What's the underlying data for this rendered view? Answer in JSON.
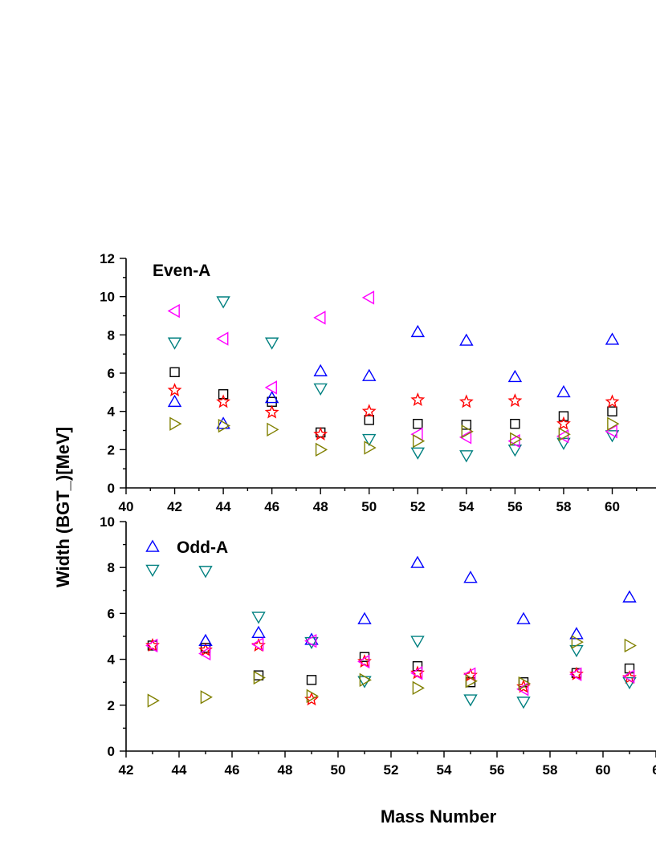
{
  "chart_data": {
    "type": "scatter",
    "ylabel": "Width (BGT_)[MeV]",
    "xlabel": "Mass Number",
    "series_styles": [
      {
        "id": "square",
        "marker": "square",
        "color": "#000000"
      },
      {
        "id": "star",
        "marker": "star",
        "color": "#ff0000"
      },
      {
        "id": "tri_up",
        "marker": "triangle-up",
        "color": "#0000ff"
      },
      {
        "id": "tri_down",
        "marker": "triangle-down",
        "color": "#008080"
      },
      {
        "id": "tri_left",
        "marker": "triangle-left",
        "color": "#ff00ff"
      },
      {
        "id": "tri_right",
        "marker": "triangle-right",
        "color": "#808000"
      }
    ],
    "panels": [
      {
        "id": "even",
        "label": "Even-A",
        "xlim": [
          40,
          61.8
        ],
        "ylim": [
          0,
          12
        ],
        "xticks": [
          "40",
          "42",
          "44",
          "46",
          "48",
          "50",
          "52",
          "54",
          "56",
          "58",
          "60"
        ],
        "yticks": [
          "0",
          "2",
          "4",
          "6",
          "8",
          "10",
          "12"
        ],
        "x": [
          42,
          44,
          46,
          48,
          50,
          52,
          54,
          56,
          58,
          60
        ],
        "series": {
          "square": [
            6.05,
            4.9,
            4.5,
            2.9,
            3.55,
            3.35,
            3.3,
            3.35,
            3.75,
            4.0
          ],
          "star": [
            5.1,
            4.5,
            3.95,
            2.8,
            4.0,
            4.6,
            4.5,
            4.55,
            3.35,
            4.5
          ],
          "tri_up": [
            4.5,
            3.35,
            4.7,
            6.1,
            5.85,
            8.15,
            7.7,
            5.8,
            5.0,
            7.75
          ],
          "tri_down": [
            7.6,
            9.75,
            7.6,
            5.2,
            2.55,
            1.85,
            1.7,
            2.0,
            2.35,
            2.75
          ],
          "tri_left": [
            9.25,
            7.8,
            5.25,
            8.9,
            9.95,
            2.8,
            2.65,
            2.45,
            2.7,
            2.95
          ],
          "tri_right": [
            3.35,
            3.25,
            3.05,
            2.0,
            2.1,
            2.45,
            2.95,
            2.55,
            2.8,
            3.35
          ]
        }
      },
      {
        "id": "odd",
        "label": "Odd-A",
        "xlim": [
          42,
          62
        ],
        "ylim": [
          0,
          10
        ],
        "xticks": [
          "42",
          "44",
          "46",
          "48",
          "50",
          "52",
          "54",
          "56",
          "58",
          "60",
          "6"
        ],
        "yticks": [
          "0",
          "2",
          "4",
          "6",
          "8",
          "10"
        ],
        "x": [
          43,
          45,
          47,
          49,
          51,
          53,
          55,
          57,
          59,
          61
        ],
        "series": {
          "square": [
            4.6,
            4.5,
            3.3,
            3.1,
            4.1,
            3.7,
            3.0,
            3.0,
            3.4,
            3.6
          ],
          "star": [
            4.6,
            4.4,
            4.6,
            2.25,
            3.9,
            3.4,
            3.3,
            2.8,
            3.35,
            3.2
          ],
          "tri_up": [
            8.9,
            4.8,
            5.15,
            4.85,
            5.75,
            8.2,
            7.55,
            5.75,
            5.1,
            6.7
          ],
          "tri_down": [
            7.9,
            7.85,
            5.85,
            4.75,
            3.05,
            4.8,
            2.25,
            2.15,
            4.4,
            3.0
          ],
          "tri_left": [
            4.6,
            4.25,
            4.65,
            4.8,
            3.9,
            3.4,
            3.35,
            2.7,
            3.35,
            3.25
          ],
          "tri_right": [
            2.2,
            2.35,
            3.2,
            2.4,
            3.1,
            2.75,
            3.05,
            2.95,
            4.75,
            4.6
          ]
        }
      }
    ]
  }
}
